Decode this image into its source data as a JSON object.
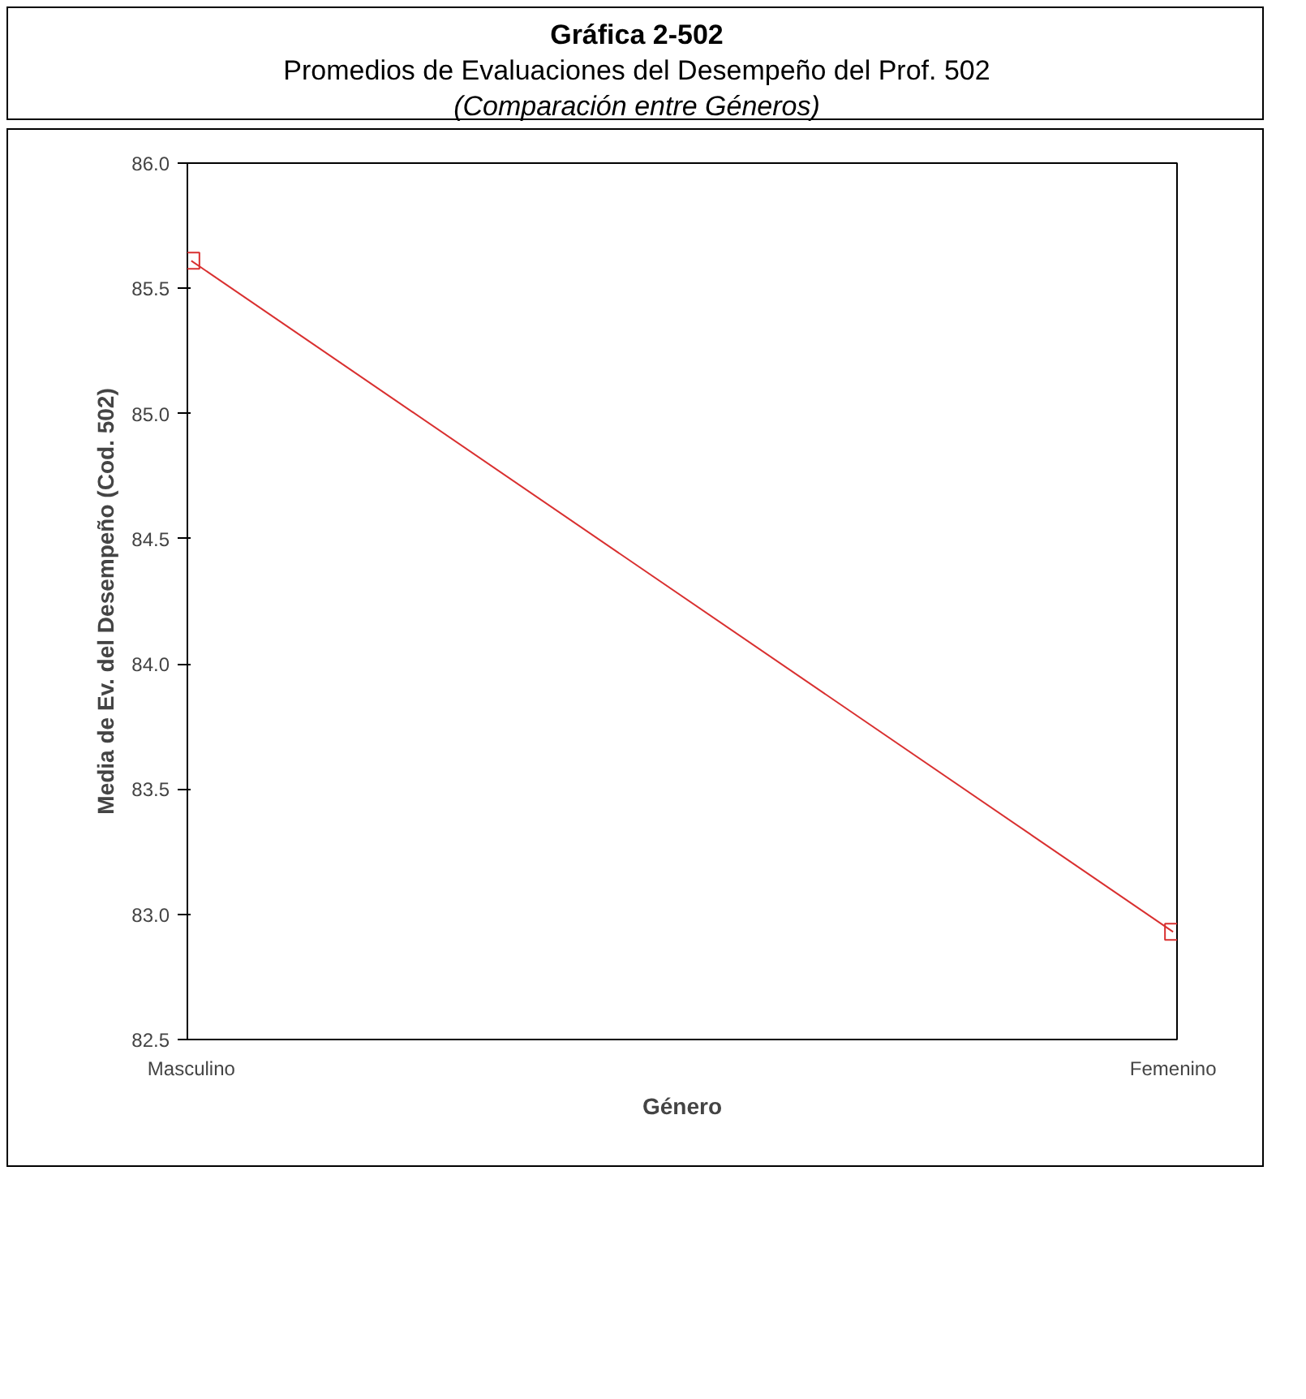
{
  "chart_data": {
    "type": "line",
    "title": "Gráfica 2-502",
    "subtitle": "Promedios de Evaluaciones del Desempeño del Prof. 502",
    "annotations": [
      "(Comparación entre Géneros)"
    ],
    "xlabel": "Género",
    "ylabel": "Media de Ev. del Desempeño (Cod. 502)",
    "categories": [
      "Masculino",
      "Femenino"
    ],
    "series": [
      {
        "color": "#d93030",
        "values": [
          85.61,
          82.93
        ]
      }
    ],
    "ylim": [
      82.5,
      86.0
    ],
    "yticks": [
      {
        "value": 82.5,
        "label": "82.5"
      },
      {
        "value": 83.0,
        "label": "83.0"
      },
      {
        "value": 83.5,
        "label": "83.5"
      },
      {
        "value": 84.0,
        "label": "84.0"
      },
      {
        "value": 84.5,
        "label": "84.5"
      },
      {
        "value": 85.0,
        "label": "85.0"
      },
      {
        "value": 85.5,
        "label": "85.5"
      },
      {
        "value": 86.0,
        "label": "86.0"
      }
    ],
    "marker": "square",
    "grid": false
  }
}
